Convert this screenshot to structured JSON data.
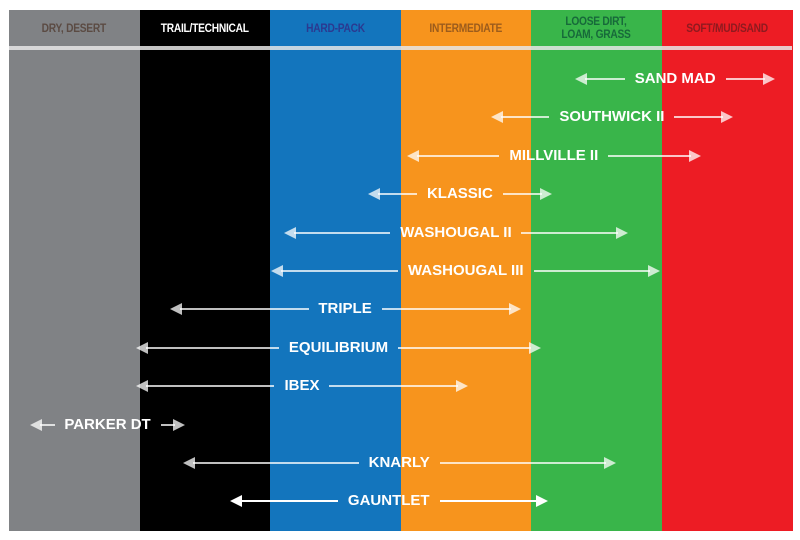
{
  "chart_data": {
    "type": "range-diagram",
    "scale_note_units": "terrain columns 0-6 (left edge of Dry/Desert = 0, right edge of Soft/Mud/Sand = 6)",
    "columns": [
      {
        "label": "DRY, DESERT",
        "color": "#808285",
        "text_color": "#5b4b43"
      },
      {
        "label": "TRAIL/TECHNICAL",
        "color": "#000000",
        "text_color": "#ffffff"
      },
      {
        "label": "HARD-PACK",
        "color": "#1375bd",
        "text_color": "#2b3990"
      },
      {
        "label": "INTERMEDIATE",
        "color": "#f7941d",
        "text_color": "#9c5c1c"
      },
      {
        "label": "LOOSE DIRT, LOAM, GRASS",
        "color": "#39b54a",
        "text_color": "#17693a"
      },
      {
        "label": "SOFT/MUD/SAND",
        "color": "#ed1c24",
        "text_color": "#8e1a1f"
      }
    ],
    "ranges": [
      {
        "name": "SAND MAD",
        "start": 4.34,
        "end": 5.87
      },
      {
        "name": "SOUTHWICK II",
        "start": 3.69,
        "end": 5.55
      },
      {
        "name": "MILLVILLE II",
        "start": 3.05,
        "end": 5.3
      },
      {
        "name": "KLASSIC",
        "start": 2.75,
        "end": 4.16
      },
      {
        "name": "WASHOUGAL II",
        "start": 2.11,
        "end": 4.74
      },
      {
        "name": "WASHOUGAL III",
        "start": 2.01,
        "end": 4.99
      },
      {
        "name": "TRIPLE",
        "start": 1.23,
        "end": 3.92
      },
      {
        "name": "EQUILIBRIUM",
        "start": 0.97,
        "end": 4.08
      },
      {
        "name": "IBEX",
        "start": 0.97,
        "end": 3.52
      },
      {
        "name": "PARKER DT",
        "start": 0.16,
        "end": 1.35
      },
      {
        "name": "KNARLY",
        "start": 1.33,
        "end": 4.65
      },
      {
        "name": "GAUNTLET",
        "start": 1.69,
        "end": 4.13,
        "highlight": true
      }
    ]
  }
}
